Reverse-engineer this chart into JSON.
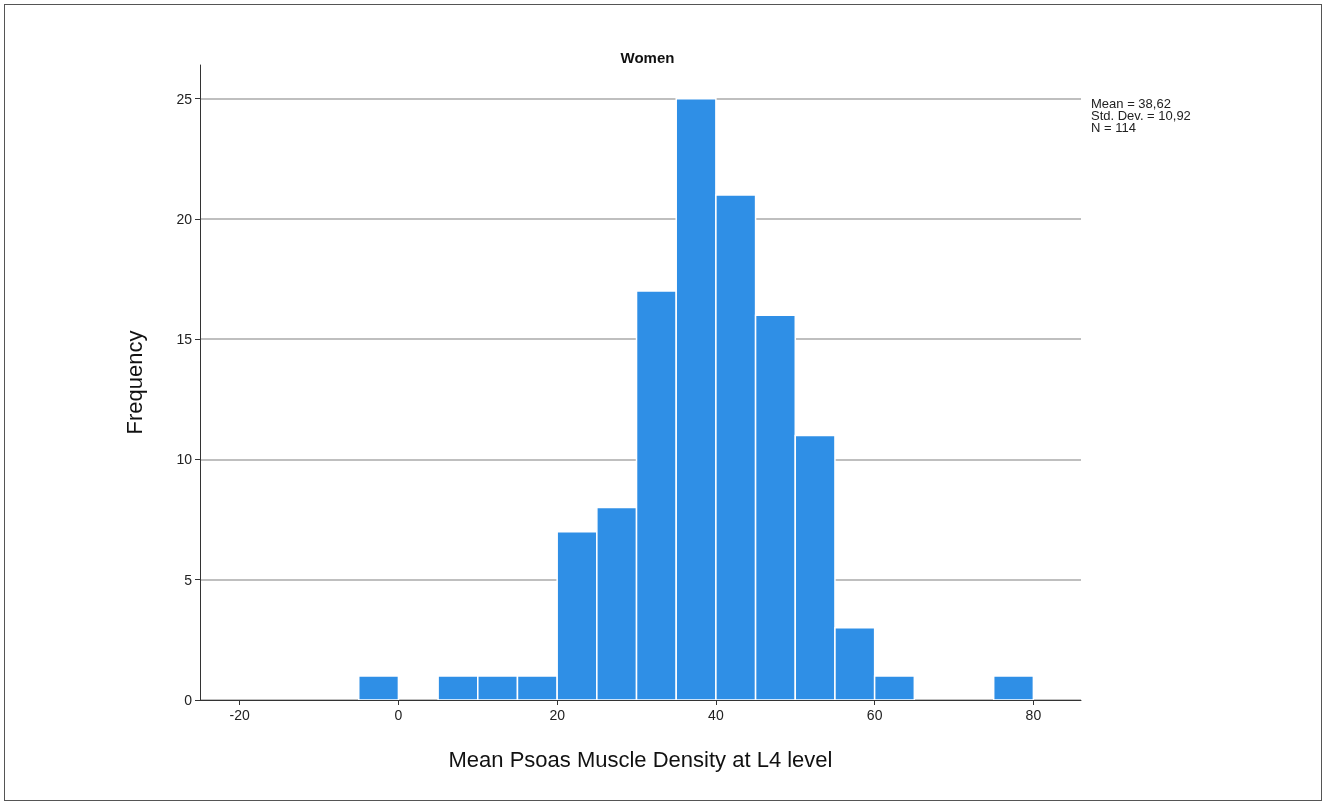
{
  "chart_data": {
    "type": "histogram",
    "title": "Women",
    "xlabel": "Mean Psoas Muscle Density at L4 level",
    "ylabel": "Frequency",
    "bins": [
      -5,
      0,
      5,
      10,
      15,
      20,
      25,
      30,
      35,
      40,
      45,
      50,
      55,
      60,
      65,
      70,
      75,
      80
    ],
    "values": [
      1,
      0,
      1,
      1,
      1,
      7,
      8,
      17,
      25,
      21,
      16,
      11,
      3,
      1,
      0,
      0,
      1
    ],
    "color": "#2f8fe6",
    "xlim": [
      -25,
      86
    ],
    "xticks": [
      -20,
      0,
      20,
      40,
      60,
      80
    ],
    "ylim": [
      0,
      26.4
    ],
    "yticks": [
      0,
      5,
      10,
      15,
      20,
      25
    ],
    "grid": "y",
    "annotations": [
      "Mean = 38,62",
      "Std. Dev. = 10,92",
      "N = 114"
    ]
  }
}
